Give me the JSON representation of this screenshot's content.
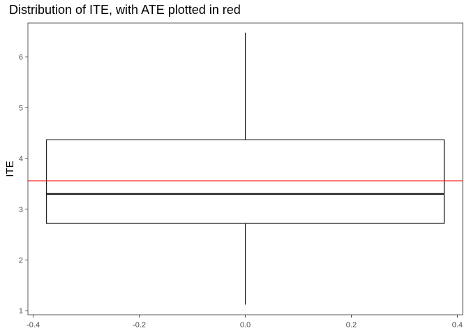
{
  "chart_data": {
    "type": "boxplot",
    "title": "Distribution of ITE, with ATE plotted in red",
    "xlabel": "",
    "ylabel": "ITE",
    "xlim": [
      -0.41,
      0.41
    ],
    "ylim": [
      0.92,
      6.67
    ],
    "x_ticks": [
      -0.4,
      -0.2,
      0.0,
      0.2,
      0.4
    ],
    "x_tick_labels": [
      "-0.4",
      "-0.2",
      "0.0",
      "0.2",
      "0.4"
    ],
    "y_ticks": [
      1,
      2,
      3,
      4,
      5,
      6
    ],
    "y_tick_labels": [
      "1",
      "2",
      "3",
      "4",
      "5",
      "6"
    ],
    "grid": false,
    "box": {
      "x_left": -0.375,
      "x_right": 0.375,
      "x_center": 0.0,
      "whisker_low": 1.12,
      "q1": 2.72,
      "median": 3.3,
      "q3": 4.37,
      "whisker_high": 6.48
    },
    "reference_line": {
      "y": 3.56,
      "color": "#ff0000"
    }
  }
}
